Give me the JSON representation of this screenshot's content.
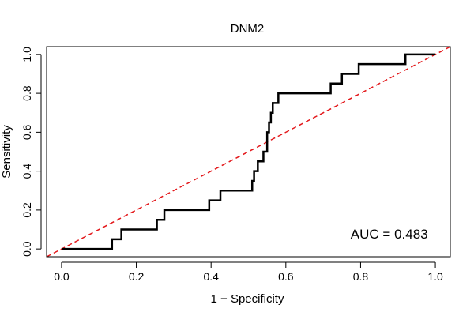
{
  "chart_data": {
    "type": "line",
    "title": "DNM2",
    "xlabel": "1 − Specificity",
    "ylabel": "Sensitivity",
    "xlim": [
      -0.04,
      1.04
    ],
    "ylim": [
      -0.04,
      1.04
    ],
    "x_ticks": [
      0.0,
      0.2,
      0.4,
      0.6,
      0.8,
      1.0
    ],
    "x_tick_labels": [
      "0.0",
      "0.2",
      "0.4",
      "0.6",
      "0.8",
      "1.0"
    ],
    "y_ticks": [
      0.0,
      0.2,
      0.4,
      0.6,
      0.8,
      1.0
    ],
    "y_tick_labels": [
      "0.0",
      "0.2",
      "0.4",
      "0.6",
      "0.8",
      "1.0"
    ],
    "grid": false,
    "series": [
      {
        "name": "ROC curve",
        "color": "#000000",
        "style": "solid",
        "x": [
          0.0,
          0.135,
          0.135,
          0.16,
          0.16,
          0.255,
          0.255,
          0.275,
          0.275,
          0.395,
          0.395,
          0.425,
          0.425,
          0.51,
          0.51,
          0.515,
          0.515,
          0.525,
          0.525,
          0.54,
          0.54,
          0.55,
          0.55,
          0.555,
          0.555,
          0.56,
          0.56,
          0.565,
          0.565,
          0.58,
          0.58,
          0.595,
          0.595,
          0.72,
          0.72,
          0.75,
          0.75,
          0.795,
          0.795,
          0.92,
          0.92,
          1.0
        ],
        "y": [
          0.0,
          0.0,
          0.05,
          0.05,
          0.1,
          0.1,
          0.15,
          0.15,
          0.2,
          0.2,
          0.25,
          0.25,
          0.3,
          0.3,
          0.35,
          0.35,
          0.4,
          0.4,
          0.45,
          0.45,
          0.5,
          0.5,
          0.6,
          0.6,
          0.65,
          0.65,
          0.7,
          0.7,
          0.75,
          0.75,
          0.8,
          0.8,
          0.8,
          0.8,
          0.85,
          0.85,
          0.9,
          0.9,
          0.95,
          0.95,
          1.0,
          1.0
        ]
      },
      {
        "name": "Reference diagonal",
        "color": "#e3181b",
        "style": "dashed",
        "x": [
          -0.04,
          1.04
        ],
        "y": [
          -0.04,
          1.04
        ]
      }
    ],
    "annotations": [
      {
        "text": "AUC = 0.483",
        "x": 0.98,
        "y": 0.03
      }
    ]
  }
}
